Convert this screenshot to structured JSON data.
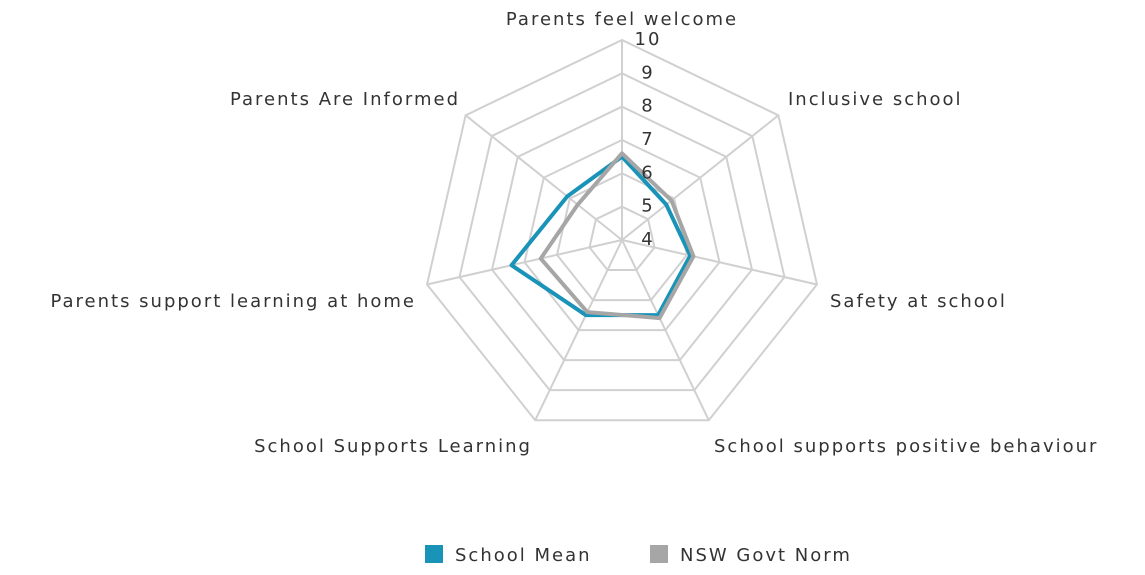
{
  "chart_data": {
    "type": "radar",
    "categories": [
      "Parents feel welcome",
      "Inclusive school",
      "Safety at school",
      "School supports positive behaviour",
      "School Supports Learning",
      "Parents support learning at home",
      "Parents Are Informed"
    ],
    "series": [
      {
        "name": "School Mean",
        "color": "#1a93b8",
        "values": [
          6.5,
          5.7,
          6.1,
          6.5,
          6.5,
          7.4,
          6.1
        ]
      },
      {
        "name": "NSW Govt Norm",
        "color": "#a6a6a6",
        "values": [
          6.6,
          5.9,
          6.2,
          6.6,
          6.4,
          6.5,
          5.7
        ]
      }
    ],
    "ylim": [
      4,
      10
    ],
    "yticks": [
      4,
      5,
      6,
      7,
      8,
      9,
      10
    ],
    "grid": true,
    "legend": "bottom"
  }
}
